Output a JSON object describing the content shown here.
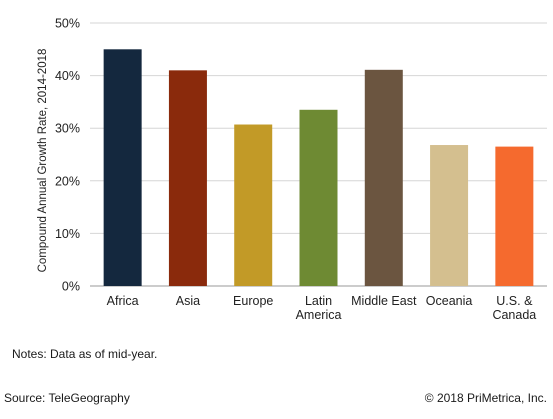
{
  "chart_data": {
    "type": "bar",
    "categories": [
      "Africa",
      "Asia",
      "Europe",
      "Latin\nAmerica",
      "Middle East",
      "Oceania",
      "U.S. &\nCanada"
    ],
    "values": [
      45,
      41,
      30.7,
      33.5,
      41.1,
      26.8,
      26.5
    ],
    "colors": [
      "#14283e",
      "#8a2a0c",
      "#c29a27",
      "#6e8a33",
      "#6b5540",
      "#d4bf8f",
      "#f56a2e"
    ],
    "ylabel": "Compound Annual Growth Rate, 2014-2018",
    "ylim": [
      0,
      50
    ],
    "yticks": [
      0,
      10,
      20,
      30,
      40,
      50
    ],
    "ytick_labels": [
      "0%",
      "10%",
      "20%",
      "30%",
      "40%",
      "50%"
    ],
    "grid": true,
    "legend": "none"
  },
  "notes": "Notes: Data as of mid-year.",
  "source": "Source: TeleGeography",
  "copyright": "© 2018 PriMetrica, Inc."
}
